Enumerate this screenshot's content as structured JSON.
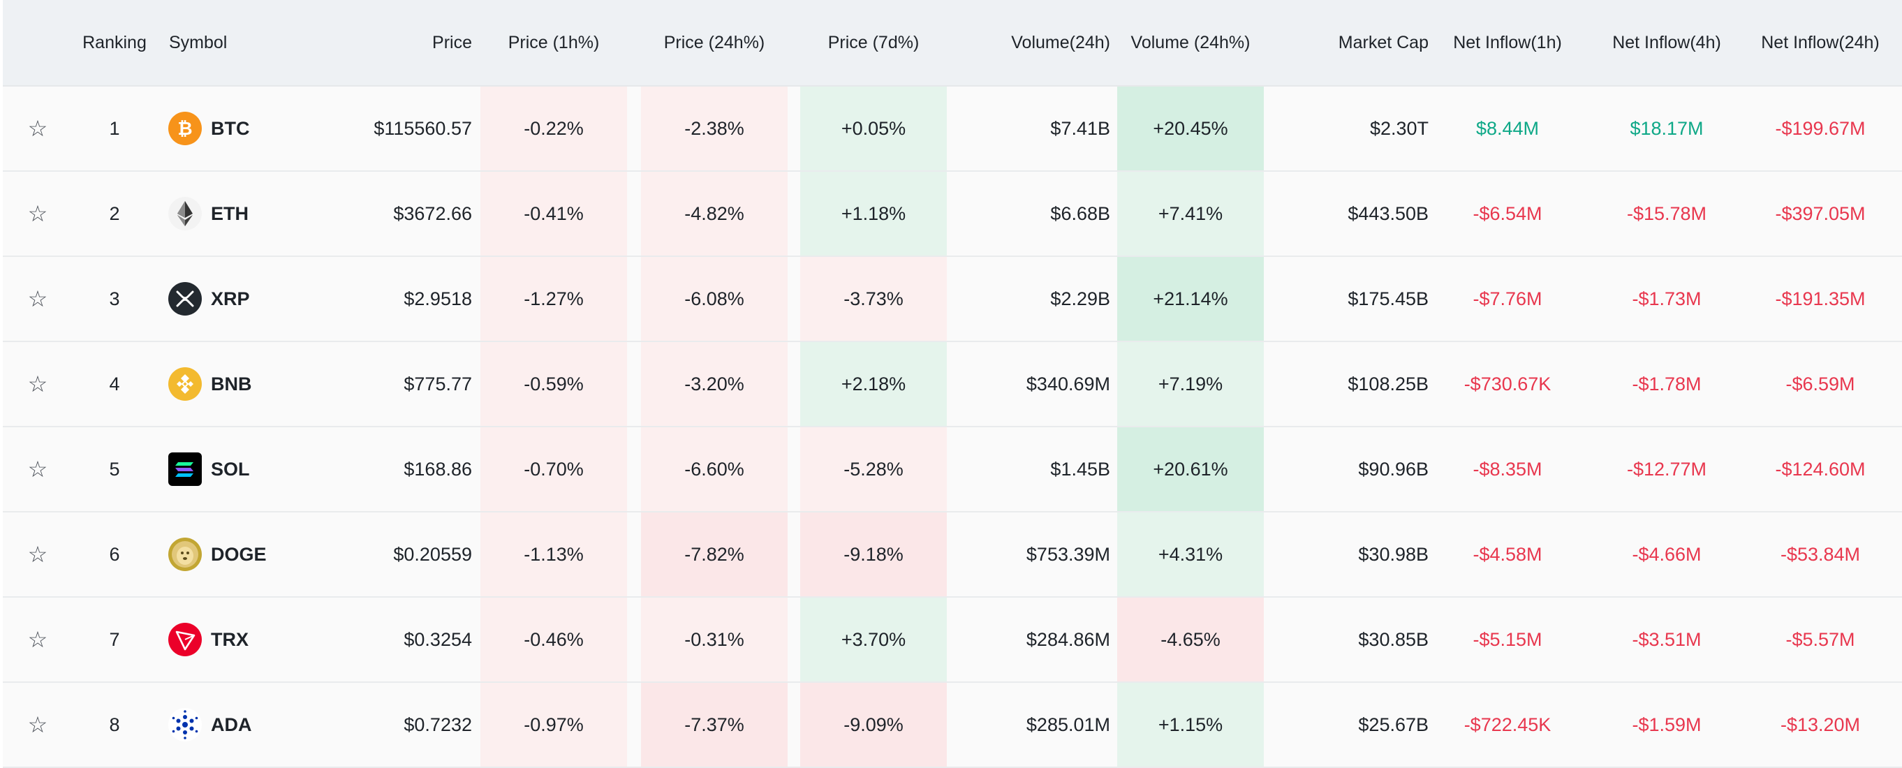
{
  "headers": {
    "ranking": "Ranking",
    "symbol": "Symbol",
    "price": "Price",
    "price_1h": "Price (1h%)",
    "price_24h": "Price (24h%)",
    "price_7d": "Price (7d%)",
    "volume_24h": "Volume(24h)",
    "volume_24h_pct": "Volume (24h%)",
    "market_cap": "Market Cap",
    "net_inflow_1h": "Net Inflow(1h)",
    "net_inflow_4h": "Net Inflow(4h)",
    "net_inflow_24h": "Net Inflow(24h)"
  },
  "colors": {
    "positive_text": "#0ea887",
    "negative_text": "#e8374e",
    "red_shade": "#fbe7e8",
    "red_shade_light": "#fcefef",
    "green_shade": "#e5f4ec",
    "green_shade_strong": "#d5efe2"
  },
  "rows": [
    {
      "rank": "1",
      "symbol": "BTC",
      "icon": "btc-icon",
      "price": "$115560.57",
      "p1h": "-0.22%",
      "p24h": "-2.38%",
      "p7d": "+0.05%",
      "vol": "$7.41B",
      "volpct": "+20.45%",
      "mcap": "$2.30T",
      "in1h": "$8.44M",
      "in4h": "$18.17M",
      "in24h": "-$199.67M"
    },
    {
      "rank": "2",
      "symbol": "ETH",
      "icon": "eth-icon",
      "price": "$3672.66",
      "p1h": "-0.41%",
      "p24h": "-4.82%",
      "p7d": "+1.18%",
      "vol": "$6.68B",
      "volpct": "+7.41%",
      "mcap": "$443.50B",
      "in1h": "-$6.54M",
      "in4h": "-$15.78M",
      "in24h": "-$397.05M"
    },
    {
      "rank": "3",
      "symbol": "XRP",
      "icon": "xrp-icon",
      "price": "$2.9518",
      "p1h": "-1.27%",
      "p24h": "-6.08%",
      "p7d": "-3.73%",
      "vol": "$2.29B",
      "volpct": "+21.14%",
      "mcap": "$175.45B",
      "in1h": "-$7.76M",
      "in4h": "-$1.73M",
      "in24h": "-$191.35M"
    },
    {
      "rank": "4",
      "symbol": "BNB",
      "icon": "bnb-icon",
      "price": "$775.77",
      "p1h": "-0.59%",
      "p24h": "-3.20%",
      "p7d": "+2.18%",
      "vol": "$340.69M",
      "volpct": "+7.19%",
      "mcap": "$108.25B",
      "in1h": "-$730.67K",
      "in4h": "-$1.78M",
      "in24h": "-$6.59M"
    },
    {
      "rank": "5",
      "symbol": "SOL",
      "icon": "sol-icon",
      "price": "$168.86",
      "p1h": "-0.70%",
      "p24h": "-6.60%",
      "p7d": "-5.28%",
      "vol": "$1.45B",
      "volpct": "+20.61%",
      "mcap": "$90.96B",
      "in1h": "-$8.35M",
      "in4h": "-$12.77M",
      "in24h": "-$124.60M"
    },
    {
      "rank": "6",
      "symbol": "DOGE",
      "icon": "doge-icon",
      "price": "$0.20559",
      "p1h": "-1.13%",
      "p24h": "-7.82%",
      "p7d": "-9.18%",
      "vol": "$753.39M",
      "volpct": "+4.31%",
      "mcap": "$30.98B",
      "in1h": "-$4.58M",
      "in4h": "-$4.66M",
      "in24h": "-$53.84M"
    },
    {
      "rank": "7",
      "symbol": "TRX",
      "icon": "trx-icon",
      "price": "$0.3254",
      "p1h": "-0.46%",
      "p24h": "-0.31%",
      "p7d": "+3.70%",
      "vol": "$284.86M",
      "volpct": "-4.65%",
      "mcap": "$30.85B",
      "in1h": "-$5.15M",
      "in4h": "-$3.51M",
      "in24h": "-$5.57M"
    },
    {
      "rank": "8",
      "symbol": "ADA",
      "icon": "ada-icon",
      "price": "$0.7232",
      "p1h": "-0.97%",
      "p24h": "-7.37%",
      "p7d": "-9.09%",
      "vol": "$285.01M",
      "volpct": "+1.15%",
      "mcap": "$25.67B",
      "in1h": "-$722.45K",
      "in4h": "-$1.59M",
      "in24h": "-$13.20M"
    }
  ]
}
